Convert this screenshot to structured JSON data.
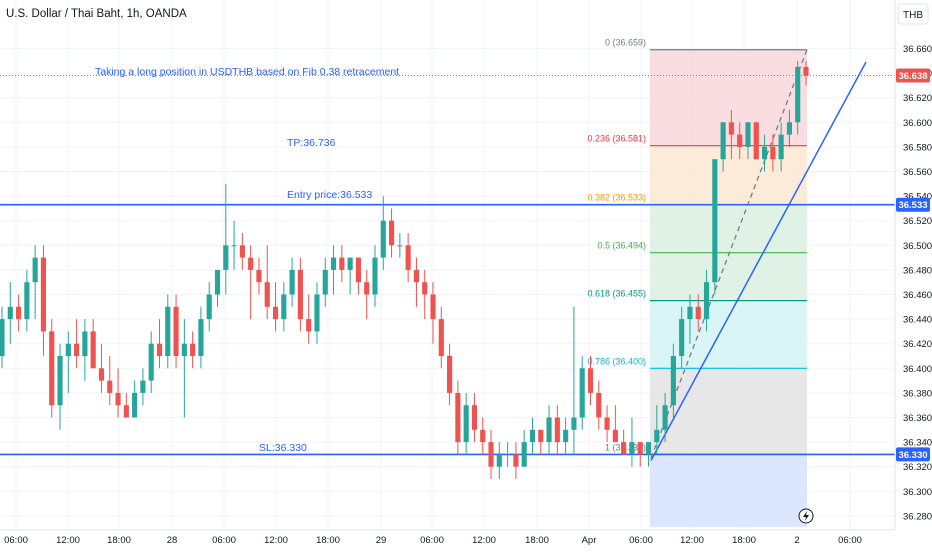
{
  "header": {
    "title": "U.S. Dollar / Thai Baht, 1h, OANDA"
  },
  "currency_button": "THB",
  "annotations": {
    "idea": "Taking a long position in USDTHB based on Fib 0.38 retracement",
    "tp": "TP:36.736",
    "entry": "Entry price:36.533",
    "sl": "SL:36.330"
  },
  "price_badges": {
    "current": "36.638",
    "entry": "36.533",
    "sl": "36.330"
  },
  "colors": {
    "bull": "#26a69a",
    "bear": "#ef5350",
    "lines": "#2962ff",
    "last_price": "#ef5350"
  },
  "chart_data": {
    "type": "candlestick",
    "symbol": "USDTHB",
    "interval": "1h",
    "y_axis": {
      "ticks": [
        "36.660",
        "36.640",
        "36.620",
        "36.600",
        "36.580",
        "36.560",
        "36.540",
        "36.520",
        "36.500",
        "36.480",
        "36.460",
        "36.440",
        "36.420",
        "36.400",
        "36.380",
        "36.360",
        "36.340",
        "36.320",
        "36.300",
        "36.280"
      ],
      "range": [
        36.27,
        36.675
      ]
    },
    "x_axis": {
      "ticks": [
        "06:00",
        "12:00",
        "18:00",
        "28",
        "06:00",
        "12:00",
        "18:00",
        "29",
        "06:00",
        "12:00",
        "18:00",
        "Apr",
        "06:00",
        "12:00",
        "18:00",
        "2",
        "06:00"
      ]
    },
    "candles": [
      {
        "o": 36.41,
        "h": 36.45,
        "l": 36.4,
        "c": 36.44
      },
      {
        "o": 36.44,
        "h": 36.47,
        "l": 36.42,
        "c": 36.45
      },
      {
        "o": 36.45,
        "h": 36.46,
        "l": 36.43,
        "c": 36.44
      },
      {
        "o": 36.44,
        "h": 36.48,
        "l": 36.43,
        "c": 36.47
      },
      {
        "o": 36.47,
        "h": 36.5,
        "l": 36.44,
        "c": 36.49
      },
      {
        "o": 36.49,
        "h": 36.5,
        "l": 36.41,
        "c": 36.43
      },
      {
        "o": 36.43,
        "h": 36.44,
        "l": 36.36,
        "c": 36.37
      },
      {
        "o": 36.37,
        "h": 36.42,
        "l": 36.35,
        "c": 36.41
      },
      {
        "o": 36.41,
        "h": 36.43,
        "l": 36.38,
        "c": 36.42
      },
      {
        "o": 36.42,
        "h": 36.44,
        "l": 36.4,
        "c": 36.41
      },
      {
        "o": 36.41,
        "h": 36.44,
        "l": 36.39,
        "c": 36.43
      },
      {
        "o": 36.43,
        "h": 36.44,
        "l": 36.4,
        "c": 36.4
      },
      {
        "o": 36.4,
        "h": 36.42,
        "l": 36.38,
        "c": 36.39
      },
      {
        "o": 36.39,
        "h": 36.41,
        "l": 36.37,
        "c": 36.38
      },
      {
        "o": 36.38,
        "h": 36.4,
        "l": 36.36,
        "c": 36.37
      },
      {
        "o": 36.37,
        "h": 36.38,
        "l": 36.36,
        "c": 36.36
      },
      {
        "o": 36.36,
        "h": 36.39,
        "l": 36.36,
        "c": 36.38
      },
      {
        "o": 36.38,
        "h": 36.4,
        "l": 36.37,
        "c": 36.39
      },
      {
        "o": 36.39,
        "h": 36.43,
        "l": 36.38,
        "c": 36.42
      },
      {
        "o": 36.42,
        "h": 36.44,
        "l": 36.4,
        "c": 36.41
      },
      {
        "o": 36.41,
        "h": 36.46,
        "l": 36.4,
        "c": 36.45
      },
      {
        "o": 36.45,
        "h": 36.46,
        "l": 36.4,
        "c": 36.41
      },
      {
        "o": 36.41,
        "h": 36.44,
        "l": 36.36,
        "c": 36.42
      },
      {
        "o": 36.42,
        "h": 36.43,
        "l": 36.4,
        "c": 36.41
      },
      {
        "o": 36.41,
        "h": 36.45,
        "l": 36.4,
        "c": 36.44
      },
      {
        "o": 36.44,
        "h": 36.47,
        "l": 36.43,
        "c": 36.46
      },
      {
        "o": 36.46,
        "h": 36.48,
        "l": 36.45,
        "c": 36.48
      },
      {
        "o": 36.48,
        "h": 36.55,
        "l": 36.46,
        "c": 36.5
      },
      {
        "o": 36.5,
        "h": 36.52,
        "l": 36.48,
        "c": 36.5
      },
      {
        "o": 36.5,
        "h": 36.51,
        "l": 36.48,
        "c": 36.49
      },
      {
        "o": 36.49,
        "h": 36.5,
        "l": 36.44,
        "c": 36.48
      },
      {
        "o": 36.48,
        "h": 36.49,
        "l": 36.46,
        "c": 36.47
      },
      {
        "o": 36.47,
        "h": 36.5,
        "l": 36.44,
        "c": 36.45
      },
      {
        "o": 36.45,
        "h": 36.47,
        "l": 36.43,
        "c": 36.44
      },
      {
        "o": 36.44,
        "h": 36.47,
        "l": 36.43,
        "c": 36.46
      },
      {
        "o": 36.46,
        "h": 36.49,
        "l": 36.45,
        "c": 36.48
      },
      {
        "o": 36.48,
        "h": 36.49,
        "l": 36.43,
        "c": 36.44
      },
      {
        "o": 36.44,
        "h": 36.46,
        "l": 36.42,
        "c": 36.43
      },
      {
        "o": 36.43,
        "h": 36.47,
        "l": 36.42,
        "c": 36.46
      },
      {
        "o": 36.46,
        "h": 36.49,
        "l": 36.45,
        "c": 36.48
      },
      {
        "o": 36.48,
        "h": 36.5,
        "l": 36.46,
        "c": 36.49
      },
      {
        "o": 36.49,
        "h": 36.5,
        "l": 36.47,
        "c": 36.48
      },
      {
        "o": 36.48,
        "h": 36.49,
        "l": 36.46,
        "c": 36.49
      },
      {
        "o": 36.49,
        "h": 36.49,
        "l": 36.46,
        "c": 36.47
      },
      {
        "o": 36.47,
        "h": 36.48,
        "l": 36.44,
        "c": 36.46
      },
      {
        "o": 36.46,
        "h": 36.5,
        "l": 36.45,
        "c": 36.49
      },
      {
        "o": 36.49,
        "h": 36.54,
        "l": 36.48,
        "c": 36.52
      },
      {
        "o": 36.52,
        "h": 36.53,
        "l": 36.49,
        "c": 36.5
      },
      {
        "o": 36.5,
        "h": 36.51,
        "l": 36.49,
        "c": 36.5
      },
      {
        "o": 36.5,
        "h": 36.51,
        "l": 36.47,
        "c": 36.48
      },
      {
        "o": 36.48,
        "h": 36.49,
        "l": 36.45,
        "c": 36.47
      },
      {
        "o": 36.47,
        "h": 36.48,
        "l": 36.44,
        "c": 36.46
      },
      {
        "o": 36.46,
        "h": 36.47,
        "l": 36.42,
        "c": 36.44
      },
      {
        "o": 36.44,
        "h": 36.45,
        "l": 36.4,
        "c": 36.41
      },
      {
        "o": 36.41,
        "h": 36.42,
        "l": 36.37,
        "c": 36.38
      },
      {
        "o": 36.38,
        "h": 36.39,
        "l": 36.33,
        "c": 36.34
      },
      {
        "o": 36.34,
        "h": 36.38,
        "l": 36.33,
        "c": 36.37
      },
      {
        "o": 36.37,
        "h": 36.38,
        "l": 36.34,
        "c": 36.35
      },
      {
        "o": 36.35,
        "h": 36.36,
        "l": 36.33,
        "c": 36.34
      },
      {
        "o": 36.34,
        "h": 36.35,
        "l": 36.31,
        "c": 36.32
      },
      {
        "o": 36.32,
        "h": 36.34,
        "l": 36.31,
        "c": 36.33
      },
      {
        "o": 36.33,
        "h": 36.34,
        "l": 36.32,
        "c": 36.33
      },
      {
        "o": 36.33,
        "h": 36.34,
        "l": 36.31,
        "c": 36.32
      },
      {
        "o": 36.32,
        "h": 36.35,
        "l": 36.32,
        "c": 36.34
      },
      {
        "o": 36.34,
        "h": 36.36,
        "l": 36.33,
        "c": 36.35
      },
      {
        "o": 36.35,
        "h": 36.35,
        "l": 36.33,
        "c": 36.34
      },
      {
        "o": 36.34,
        "h": 36.37,
        "l": 36.33,
        "c": 36.36
      },
      {
        "o": 36.36,
        "h": 36.37,
        "l": 36.33,
        "c": 36.34
      },
      {
        "o": 36.34,
        "h": 36.36,
        "l": 36.33,
        "c": 36.35
      },
      {
        "o": 36.35,
        "h": 36.45,
        "l": 36.33,
        "c": 36.36
      },
      {
        "o": 36.36,
        "h": 36.41,
        "l": 36.35,
        "c": 36.4
      },
      {
        "o": 36.4,
        "h": 36.41,
        "l": 36.37,
        "c": 36.38
      },
      {
        "o": 36.38,
        "h": 36.39,
        "l": 36.35,
        "c": 36.36
      },
      {
        "o": 36.36,
        "h": 36.37,
        "l": 36.34,
        "c": 36.35
      },
      {
        "o": 36.35,
        "h": 36.37,
        "l": 36.34,
        "c": 36.34
      },
      {
        "o": 36.34,
        "h": 36.35,
        "l": 36.33,
        "c": 36.33
      },
      {
        "o": 36.33,
        "h": 36.36,
        "l": 36.32,
        "c": 36.34
      },
      {
        "o": 36.34,
        "h": 36.34,
        "l": 36.32,
        "c": 36.33
      },
      {
        "o": 36.33,
        "h": 36.34,
        "l": 36.32,
        "c": 36.34
      },
      {
        "o": 36.34,
        "h": 36.37,
        "l": 36.33,
        "c": 36.35
      },
      {
        "o": 36.35,
        "h": 36.38,
        "l": 36.34,
        "c": 36.37
      },
      {
        "o": 36.37,
        "h": 36.42,
        "l": 36.36,
        "c": 36.41
      },
      {
        "o": 36.41,
        "h": 36.45,
        "l": 36.4,
        "c": 36.44
      },
      {
        "o": 36.44,
        "h": 36.46,
        "l": 36.42,
        "c": 36.45
      },
      {
        "o": 36.45,
        "h": 36.46,
        "l": 36.43,
        "c": 36.44
      },
      {
        "o": 36.44,
        "h": 36.48,
        "l": 36.43,
        "c": 36.47
      },
      {
        "o": 36.47,
        "h": 36.57,
        "l": 36.46,
        "c": 36.57
      },
      {
        "o": 36.57,
        "h": 36.6,
        "l": 36.56,
        "c": 36.6
      },
      {
        "o": 36.6,
        "h": 36.61,
        "l": 36.57,
        "c": 36.59
      },
      {
        "o": 36.59,
        "h": 36.6,
        "l": 36.57,
        "c": 36.58
      },
      {
        "o": 36.58,
        "h": 36.6,
        "l": 36.57,
        "c": 36.6
      },
      {
        "o": 36.6,
        "h": 36.6,
        "l": 36.57,
        "c": 36.57
      },
      {
        "o": 36.57,
        "h": 36.59,
        "l": 36.56,
        "c": 36.58
      },
      {
        "o": 36.58,
        "h": 36.59,
        "l": 36.56,
        "c": 36.57
      },
      {
        "o": 36.57,
        "h": 36.6,
        "l": 36.56,
        "c": 36.59
      },
      {
        "o": 36.59,
        "h": 36.61,
        "l": 36.58,
        "c": 36.6
      },
      {
        "o": 36.6,
        "h": 36.65,
        "l": 36.59,
        "c": 36.645
      },
      {
        "o": 36.645,
        "h": 36.65,
        "l": 36.63,
        "c": 36.638
      }
    ],
    "horizontal_lines": [
      {
        "label": "Entry price:36.533",
        "price": 36.533
      },
      {
        "label": "SL:36.330",
        "price": 36.33
      }
    ],
    "last_price": 36.638,
    "fibonacci_retracement": {
      "high": 36.659,
      "low": 36.33,
      "levels": [
        {
          "ratio": "0",
          "price": 36.659,
          "label": "0 (36.659)",
          "color": "#787b86",
          "fill": "#f8d7da"
        },
        {
          "ratio": "0.236",
          "price": 36.581,
          "label": "0.236 (36.581)",
          "color": "#f23645",
          "fill": "#fde8d2"
        },
        {
          "ratio": "0.382",
          "price": 36.533,
          "label": "0.382 (36.533)",
          "color": "#ff9800",
          "fill": "#d9f0e0"
        },
        {
          "ratio": "0.5",
          "price": 36.494,
          "label": "0.5 (36.494)",
          "color": "#4caf50",
          "fill": "#d9f0e0"
        },
        {
          "ratio": "0.618",
          "price": 36.455,
          "label": "0.618 (36.455)",
          "color": "#089981",
          "fill": "#d4f3f4"
        },
        {
          "ratio": "0.786",
          "price": 36.4,
          "label": "0.786 (36.400)",
          "color": "#00bcd4",
          "fill": "#e3e3e3"
        },
        {
          "ratio": "1",
          "price": 36.33,
          "label": "1 (36.330)",
          "color": "#787b86",
          "fill": "#d6e2ff"
        }
      ]
    },
    "trend_line": {
      "from_price": 36.325,
      "to_price": 36.645
    }
  }
}
